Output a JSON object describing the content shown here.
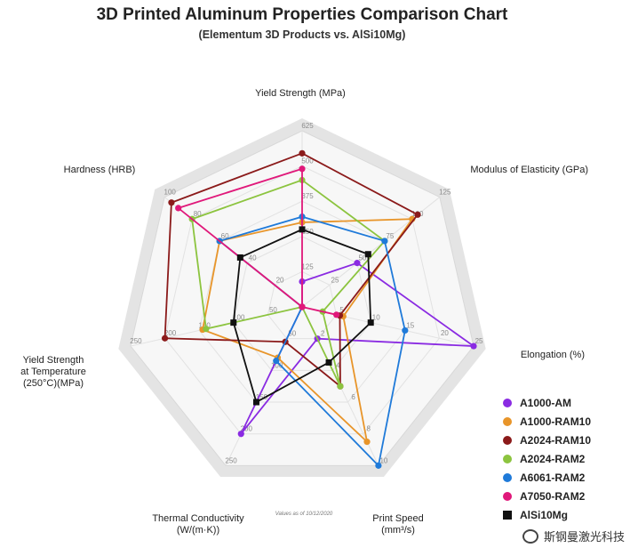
{
  "title": "3D Printed Aluminum Properties Comparison Chart",
  "subtitle": "(Elementum 3D Products vs. AlSi10Mg)",
  "chart_data": {
    "type": "radar",
    "axes": [
      {
        "name": "Yield Strength",
        "unit": "(MPa)",
        "lines": [
          "Yield Strength (MPa)"
        ],
        "max": 625,
        "ticks": [
          125,
          250,
          375,
          500,
          625
        ]
      },
      {
        "name": "Modulus of Elasticity",
        "unit": "(GPa)",
        "lines": [
          "Modulus of Elasticity (GPa)"
        ],
        "max": 125,
        "ticks": [
          25,
          50,
          75,
          100,
          125
        ]
      },
      {
        "name": "Elongation",
        "unit": "(%)",
        "lines": [
          "Elongation (%)"
        ],
        "max": 25,
        "ticks": [
          5,
          10,
          15,
          20,
          25
        ]
      },
      {
        "name": "Print Speed",
        "unit": "(mm³/s)",
        "lines": [
          "Print Speed",
          "(mm³/s)"
        ],
        "max": 10,
        "ticks": [
          2,
          4,
          6,
          8,
          10
        ]
      },
      {
        "name": "Thermal Conductivity",
        "unit": "(W/(m·K))",
        "lines": [
          "Thermal Conductivity",
          "(W/(m·K))"
        ],
        "max": 250,
        "ticks": [
          50,
          100,
          150,
          200,
          250
        ]
      },
      {
        "name": "Yield Strength at Temperature",
        "unit": "(250°C)(MPa)",
        "lines": [
          "Yield Strength",
          "at Temperature",
          "(250°C)(MPa)"
        ],
        "max": 250,
        "ticks": [
          50,
          100,
          150,
          200,
          250
        ]
      },
      {
        "name": "Hardness",
        "unit": "(HRB)",
        "lines": [
          "Hardness (HRB)"
        ],
        "max": 100,
        "ticks": [
          20,
          40,
          60,
          80,
          100
        ]
      }
    ],
    "series": [
      {
        "name": "A1000-AM",
        "color": "#8a2be2",
        "marker": "circle",
        "values": [
          90,
          50,
          25,
          2,
          200,
          0,
          0
        ]
      },
      {
        "name": "A1000-RAM10",
        "color": "#e8952a",
        "marker": "circle",
        "values": [
          300,
          100,
          6,
          8.5,
          80,
          145,
          60
        ]
      },
      {
        "name": "A2024-RAM10",
        "color": "#8b1a1a",
        "marker": "circle",
        "values": [
          545,
          105,
          5.5,
          5,
          55,
          200,
          95
        ]
      },
      {
        "name": "A2024-RAM2",
        "color": "#8cc43f",
        "marker": "circle",
        "values": [
          450,
          75,
          3,
          5,
          0,
          140,
          80
        ]
      },
      {
        "name": "A6061-RAM2",
        "color": "#1f7ad9",
        "marker": "circle",
        "values": [
          320,
          75,
          15,
          10,
          85,
          0,
          60
        ]
      },
      {
        "name": "A7050-RAM2",
        "color": "#e0187a",
        "marker": "circle",
        "values": [
          490,
          0,
          5,
          0,
          0,
          0,
          90
        ]
      },
      {
        "name": "AlSi10Mg",
        "color": "#111111",
        "marker": "square",
        "values": [
          275,
          60,
          10,
          3.5,
          150,
          100,
          45
        ]
      }
    ],
    "note": "Values as of 10/12/2020",
    "legend_position": "bottom-right"
  },
  "watermark": "斯钢曼激光科技"
}
